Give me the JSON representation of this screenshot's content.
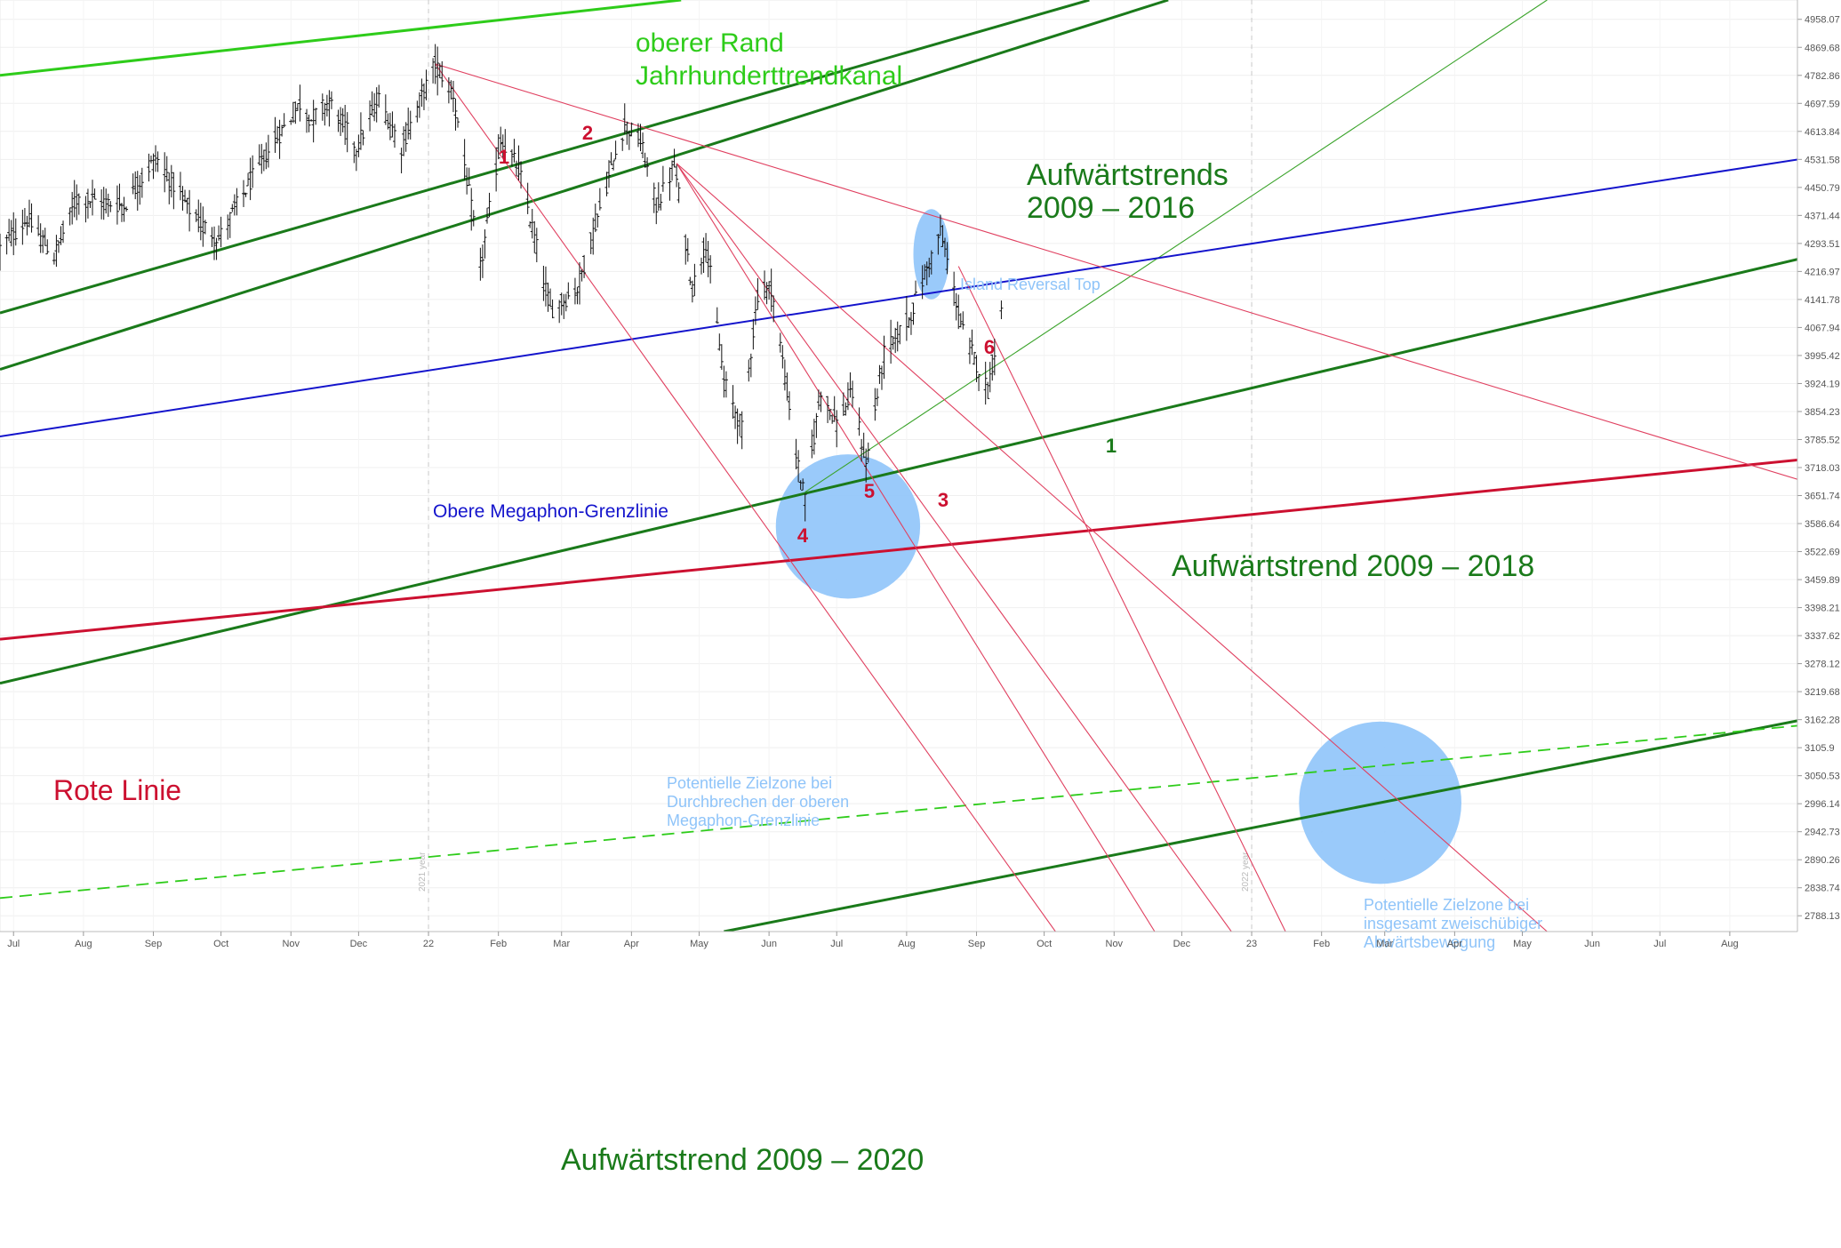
{
  "chart_data": {
    "type": "candlestick",
    "y_scale": "log",
    "ylim": [
      2760,
      5020
    ],
    "x_range": [
      "2021-06-25",
      "2023-08-31"
    ],
    "y_ticks": [
      4958.07,
      4869.68,
      4782.86,
      4697.59,
      4613.84,
      4531.58,
      4450.79,
      4371.44,
      4293.51,
      4216.97,
      4141.78,
      4067.94,
      3995.42,
      3924.19,
      3854.23,
      3785.52,
      3718.03,
      3651.74,
      3586.64,
      3522.69,
      3459.89,
      3398.21,
      3337.62,
      3278.12,
      3219.68,
      3162.28,
      3105.9,
      3050.53,
      2996.14,
      2942.73,
      2890.26,
      2838.74,
      2788.13
    ],
    "x_ticks": [
      {
        "label": "Jul",
        "date": "2021-07-01"
      },
      {
        "label": "Aug",
        "date": "2021-08-01"
      },
      {
        "label": "Sep",
        "date": "2021-09-01"
      },
      {
        "label": "Oct",
        "date": "2021-10-01"
      },
      {
        "label": "Nov",
        "date": "2021-11-01"
      },
      {
        "label": "Dec",
        "date": "2021-12-01"
      },
      {
        "label": "22",
        "date": "2022-01-01"
      },
      {
        "label": "Feb",
        "date": "2022-02-01"
      },
      {
        "label": "Mar",
        "date": "2022-03-01"
      },
      {
        "label": "Apr",
        "date": "2022-04-01"
      },
      {
        "label": "May",
        "date": "2022-05-01"
      },
      {
        "label": "Jun",
        "date": "2022-06-01"
      },
      {
        "label": "Jul",
        "date": "2022-07-01"
      },
      {
        "label": "Aug",
        "date": "2022-08-01"
      },
      {
        "label": "Sep",
        "date": "2022-09-01"
      },
      {
        "label": "Oct",
        "date": "2022-10-01"
      },
      {
        "label": "Nov",
        "date": "2022-11-01"
      },
      {
        "label": "Dec",
        "date": "2022-12-01"
      },
      {
        "label": "23",
        "date": "2023-01-01"
      },
      {
        "label": "Feb",
        "date": "2023-02-01"
      },
      {
        "label": "Mar",
        "date": "2023-03-01"
      },
      {
        "label": "Apr",
        "date": "2023-04-01"
      },
      {
        "label": "May",
        "date": "2023-05-01"
      },
      {
        "label": "Jun",
        "date": "2023-06-01"
      },
      {
        "label": "Jul",
        "date": "2023-07-01"
      },
      {
        "label": "Aug",
        "date": "2023-08-01"
      }
    ],
    "year_markers": [
      {
        "label": "2021 year",
        "date": "2022-01-01"
      },
      {
        "label": "2022 year",
        "date": "2023-01-01"
      }
    ],
    "price_path": [
      [
        "2021-06-25",
        4280
      ],
      [
        "2021-07-07",
        4360
      ],
      [
        "2021-07-19",
        4258
      ],
      [
        "2021-07-29",
        4420
      ],
      [
        "2021-08-19",
        4400
      ],
      [
        "2021-09-02",
        4537
      ],
      [
        "2021-09-20",
        4358
      ],
      [
        "2021-09-30",
        4307
      ],
      [
        "2021-10-20",
        4536
      ],
      [
        "2021-11-05",
        4697
      ],
      [
        "2021-11-10",
        4650
      ],
      [
        "2021-11-18",
        4704
      ],
      [
        "2021-11-30",
        4567
      ],
      [
        "2021-12-10",
        4710
      ],
      [
        "2021-12-20",
        4568
      ],
      [
        "2022-01-04",
        4818
      ],
      [
        "2022-01-12",
        4726
      ],
      [
        "2022-01-24",
        4222
      ],
      [
        "2022-02-02",
        4590
      ],
      [
        "2022-02-10",
        4504
      ],
      [
        "2022-02-24",
        4114
      ],
      [
        "2022-03-08",
        4170
      ],
      [
        "2022-03-29",
        4637
      ],
      [
        "2022-04-05",
        4582
      ],
      [
        "2022-04-12",
        4397
      ],
      [
        "2022-04-20",
        4512
      ],
      [
        "2022-04-28",
        4170
      ],
      [
        "2022-05-04",
        4300
      ],
      [
        "2022-05-12",
        3930
      ],
      [
        "2022-05-20",
        3810
      ],
      [
        "2022-05-27",
        4158
      ],
      [
        "2022-06-02",
        4176
      ],
      [
        "2022-06-13",
        3749
      ],
      [
        "2022-06-17",
        3636
      ],
      [
        "2022-06-24",
        3911
      ],
      [
        "2022-07-01",
        3825
      ],
      [
        "2022-07-08",
        3899
      ],
      [
        "2022-07-14",
        3723
      ],
      [
        "2022-07-22",
        3999
      ],
      [
        "2022-08-02",
        4090
      ],
      [
        "2022-08-16",
        4325
      ],
      [
        "2022-08-26",
        4057
      ],
      [
        "2022-09-06",
        3908
      ],
      [
        "2022-09-12",
        4110
      ]
    ],
    "trend_lines": [
      {
        "name": "oberer Rand Jahrhunderttrendkanal",
        "color": "#2ecc1a",
        "style": "solid",
        "points": [
          [
            "2021-06-25",
            4783
          ],
          [
            "2022-04-23",
            5020
          ]
        ]
      },
      {
        "name": "Aufwärtstrends 2009 – 2016",
        "color": "#1a7a1a",
        "style": "solid",
        "points": [
          [
            "2021-06-25",
            4106
          ],
          [
            "2022-10-21",
            5020
          ]
        ]
      },
      {
        "name": "Aufwärtstrends 2009 – 2016",
        "color": "#1a7a1a",
        "style": "solid",
        "points": [
          [
            "2021-06-25",
            3960
          ],
          [
            "2022-11-25",
            5020
          ]
        ]
      },
      {
        "name": "1",
        "color": "#3aa32a",
        "style": "thin",
        "points": [
          [
            "2022-06-17",
            3660
          ],
          [
            "2023-05-12",
            5020
          ]
        ]
      },
      {
        "name": "Obere Megaphon-Grenzlinie",
        "color": "#1414cc",
        "style": "solid",
        "points": [
          [
            "2021-06-25",
            3793
          ],
          [
            "2023-08-31",
            4531
          ]
        ]
      },
      {
        "name": "Aufwärtstrend 2009 – 2018",
        "color": "#1a7a1a",
        "style": "solid",
        "points": [
          [
            "2021-06-25",
            3237
          ],
          [
            "2023-08-31",
            4250
          ]
        ]
      },
      {
        "name": "Rote Linie",
        "color": "#cc1030",
        "style": "solid",
        "points": [
          [
            "2021-06-25",
            3330
          ],
          [
            "2023-08-31",
            3736
          ]
        ]
      },
      {
        "name": "Aufwärtstrend 2009 – 2020",
        "color": "#1a7a1a",
        "style": "solid",
        "points": [
          [
            "2022-05-12",
            2760
          ],
          [
            "2023-08-31",
            3160
          ]
        ]
      },
      {
        "name": "Aufwärtstrend 2009 – 2020 (Parallele)",
        "color": "#2ecc1a",
        "style": "dashed",
        "points": [
          [
            "2021-06-25",
            2820
          ],
          [
            "2023-08-31",
            3150
          ]
        ]
      },
      {
        "name": "2",
        "color": "#e04060",
        "style": "thin",
        "points": [
          [
            "2022-01-04",
            4818
          ],
          [
            "2023-08-31",
            3690
          ]
        ]
      },
      {
        "name": "1",
        "color": "#e04060",
        "style": "thin",
        "points": [
          [
            "2022-01-04",
            4818
          ],
          [
            "2022-10-06",
            2760
          ]
        ]
      },
      {
        "name": "4",
        "color": "#e04060",
        "style": "thin",
        "points": [
          [
            "2022-04-21",
            4520
          ],
          [
            "2022-11-19",
            2760
          ]
        ]
      },
      {
        "name": "5",
        "color": "#e04060",
        "style": "thin",
        "points": [
          [
            "2022-04-21",
            4520
          ],
          [
            "2022-12-23",
            2760
          ]
        ]
      },
      {
        "name": "3",
        "color": "#e04060",
        "style": "thin",
        "points": [
          [
            "2022-04-21",
            4520
          ],
          [
            "2023-05-12",
            2760
          ]
        ]
      },
      {
        "name": "6",
        "color": "#e04060",
        "style": "thin",
        "points": [
          [
            "2022-08-24",
            4231
          ],
          [
            "2023-01-16",
            2760
          ]
        ]
      }
    ],
    "zones": [
      {
        "label": "Potentielle Zielzone bei Durchbrechen der oberen Megaphon-Grenzlinie",
        "center": [
          "2022-07-06",
          3580
        ],
        "rx_days": 32,
        "color": "#8fc4f9"
      },
      {
        "label": "Potentielle Zielzone bei insgesamt zweischübiger Abwärtsbewegung",
        "center": [
          "2023-02-27",
          2998
        ],
        "rx_days": 36,
        "color": "#8fc4f9"
      },
      {
        "label": "Island Reversal Top",
        "center": [
          "2022-08-12",
          4264
        ],
        "rx_days": 8,
        "color": "#8fc4f9"
      }
    ],
    "annotations": [
      {
        "text": "oberer Rand",
        "color": "#2ecc1a",
        "size": 30
      },
      {
        "text": "Jahrhunderttrendkanal",
        "color": "#2ecc1a",
        "size": 30
      },
      {
        "text": "Aufwärtstrends",
        "color": "#1a7a1a",
        "size": 34
      },
      {
        "text": "2009 – 2016",
        "color": "#1a7a1a",
        "size": 34
      },
      {
        "text": "Island Reversal Top",
        "color": "#8fc4f9",
        "size": 18
      },
      {
        "text": "Obere Megaphon-Grenzlinie",
        "color": "#1414cc",
        "size": 21
      },
      {
        "text": "Aufwärtstrend 2009 – 2018",
        "color": "#1a7a1a",
        "size": 34
      },
      {
        "text": "Rote Linie",
        "color": "#cc1030",
        "size": 32
      },
      {
        "text": "Potentielle Zielzone bei",
        "color": "#8fc4f9",
        "size": 18
      },
      {
        "text": "Durchbrechen der oberen",
        "color": "#8fc4f9",
        "size": 18
      },
      {
        "text": "Megaphon-Grenzlinie",
        "color": "#8fc4f9",
        "size": 18
      },
      {
        "text": "Potentielle Zielzone bei",
        "color": "#8fc4f9",
        "size": 18
      },
      {
        "text": "insgesamt zweischübiger",
        "color": "#8fc4f9",
        "size": 18
      },
      {
        "text": "Abwärtsbewegung",
        "color": "#8fc4f9",
        "size": 18
      },
      {
        "text": "Aufwärtstrend 2009 – 2020",
        "color": "#1a7a1a",
        "size": 34
      },
      {
        "text": "1",
        "color": "#cc1030",
        "size": 22
      },
      {
        "text": "2",
        "color": "#cc1030",
        "size": 22
      },
      {
        "text": "3",
        "color": "#cc1030",
        "size": 22
      },
      {
        "text": "4",
        "color": "#cc1030",
        "size": 22
      },
      {
        "text": "5",
        "color": "#cc1030",
        "size": 22
      },
      {
        "text": "6",
        "color": "#cc1030",
        "size": 22
      },
      {
        "text": "1",
        "color": "#1a7a1a",
        "size": 22
      }
    ],
    "grid": true
  }
}
